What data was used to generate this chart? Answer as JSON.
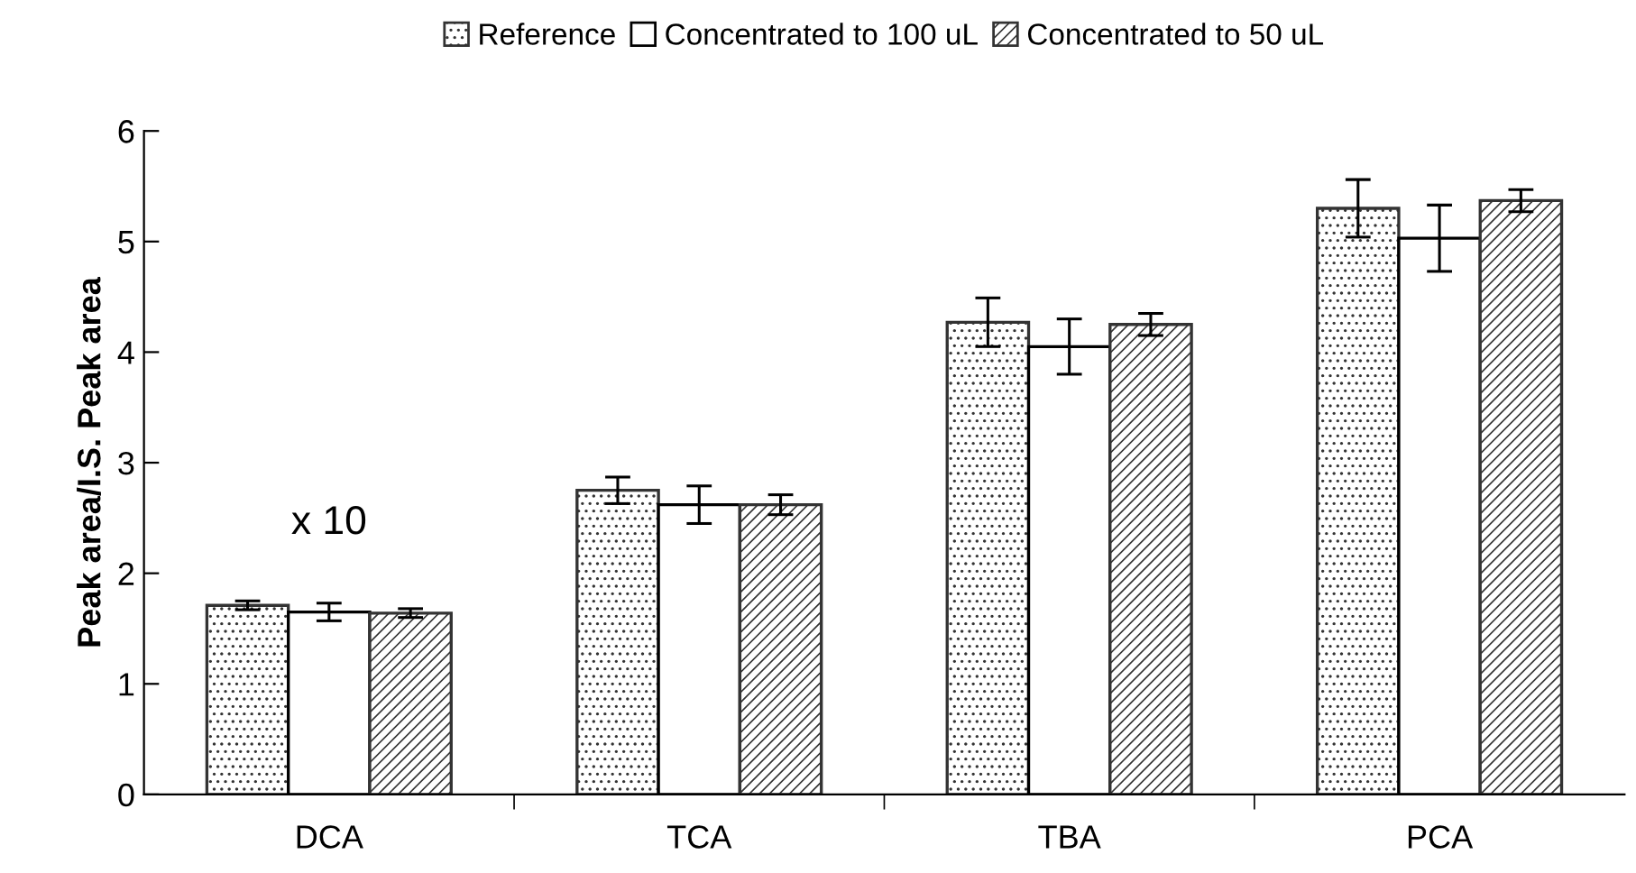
{
  "chart_data": {
    "type": "bar",
    "ylabel": "Peak area/I.S. Peak area",
    "categories": [
      "DCA",
      "TCA",
      "TBA",
      "PCA"
    ],
    "series": [
      {
        "name": "Reference",
        "color": "#333333",
        "values": [
          1.71,
          2.75,
          4.27,
          5.3
        ],
        "errors": [
          0.04,
          0.12,
          0.22,
          0.26
        ]
      },
      {
        "name": "Concentrated to 100 uL",
        "color": "#ffffff",
        "values": [
          1.65,
          2.62,
          4.05,
          5.03
        ],
        "errors": [
          0.08,
          0.17,
          0.25,
          0.3
        ]
      },
      {
        "name": "Concentrated to 50 uL",
        "color": "#333333",
        "values": [
          1.64,
          2.62,
          4.25,
          5.37
        ],
        "errors": [
          0.04,
          0.09,
          0.1,
          0.1
        ]
      }
    ],
    "ylim": [
      0,
      6
    ],
    "yticks": [
      0,
      1,
      2,
      3,
      4,
      5,
      6
    ],
    "grid": false,
    "legend": "top",
    "annotations": [
      "x 10"
    ]
  }
}
